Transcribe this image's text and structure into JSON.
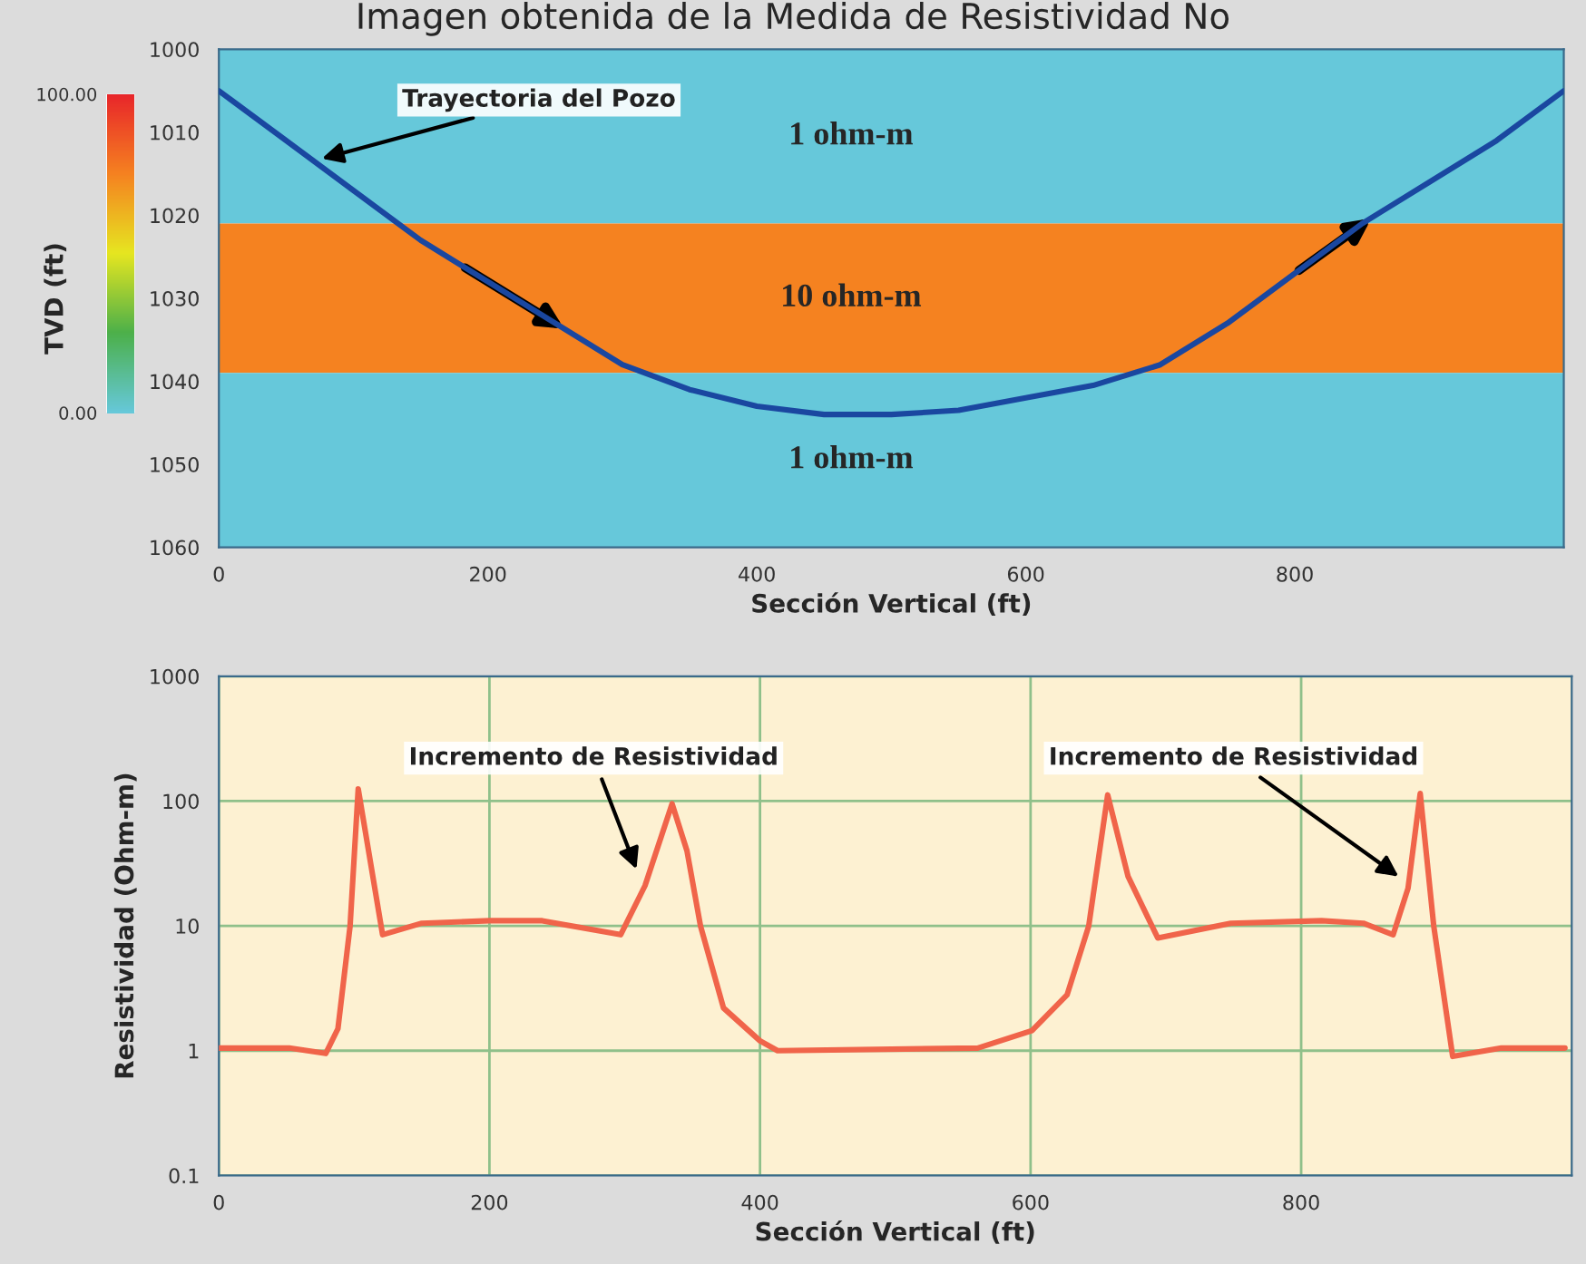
{
  "chart_data": [
    {
      "type": "line",
      "title": "Imagen obtenida de la Medida de Resistividad No",
      "xlabel": "Sección Vertical (ft)",
      "ylabel": "TVD (ft)",
      "x": [
        0,
        50,
        100,
        150,
        200,
        250,
        300,
        350,
        400,
        450,
        500,
        550,
        600,
        650,
        700,
        750,
        800,
        850,
        900,
        950,
        1000
      ],
      "series": [
        {
          "color": "#1a47a0",
          "values": [
            1005,
            1011,
            1017,
            1023,
            1028,
            1033,
            1038,
            1041,
            1043,
            1044,
            1044,
            1043.5,
            1042,
            1040.5,
            1038,
            1033,
            1027,
            1021,
            1016,
            1011,
            1005
          ]
        }
      ],
      "xlim": [
        0,
        1000
      ],
      "ylim": [
        1060,
        1000
      ],
      "xticks": [
        0,
        200,
        400,
        600,
        800
      ],
      "yticks": [
        1000,
        1010,
        1020,
        1030,
        1040,
        1050,
        1060
      ],
      "bands": [
        {
          "axis": "y",
          "from": 1000,
          "to": 1021,
          "label": "1 ohm-m",
          "color": "#66c8da"
        },
        {
          "axis": "y",
          "from": 1021,
          "to": 1039,
          "label": "10 ohm-m",
          "color": "#f58220"
        },
        {
          "axis": "y",
          "from": 1039,
          "to": 1060,
          "label": "1 ohm-m",
          "color": "#66c8da"
        }
      ],
      "clim": [
        0,
        100
      ],
      "cticks": [
        {
          "value": 0,
          "label": "0.00"
        },
        {
          "value": 100,
          "label": "100.00"
        }
      ],
      "annotations": [
        "Trayectoria del Pozo"
      ],
      "grid": false
    },
    {
      "type": "line",
      "xlabel": "Sección Vertical (ft)",
      "ylabel": "Resistividad (Ohm-m)",
      "log": "y",
      "x": [
        0,
        52,
        79,
        88,
        97,
        103,
        121,
        150,
        200,
        239,
        297,
        315,
        335,
        346,
        356,
        373,
        400,
        413,
        561,
        601,
        627,
        643,
        657,
        672,
        694,
        748,
        815,
        846,
        868,
        879,
        888,
        898,
        912,
        948,
        995
      ],
      "series": [
        {
          "color": "#f0644a",
          "values": [
            1.05,
            1.05,
            0.95,
            1.5,
            10,
            125,
            8.5,
            10.5,
            11,
            11,
            8.5,
            21,
            95,
            40,
            10,
            2.2,
            1.2,
            1.0,
            1.05,
            1.45,
            2.8,
            10,
            112,
            25,
            8,
            10.5,
            11,
            10.5,
            8.5,
            20,
            115,
            10,
            0.9,
            1.05,
            1.05
          ]
        }
      ],
      "xlim": [
        0,
        1000
      ],
      "ylim": [
        0.1,
        1000
      ],
      "xticks": [
        0,
        200,
        400,
        600,
        800
      ],
      "yticks": [
        0.1,
        1,
        10,
        100,
        1000
      ],
      "grid": true,
      "annotations": [
        "Incremento de Resistividad",
        "Incremento de Resistividad"
      ]
    }
  ]
}
